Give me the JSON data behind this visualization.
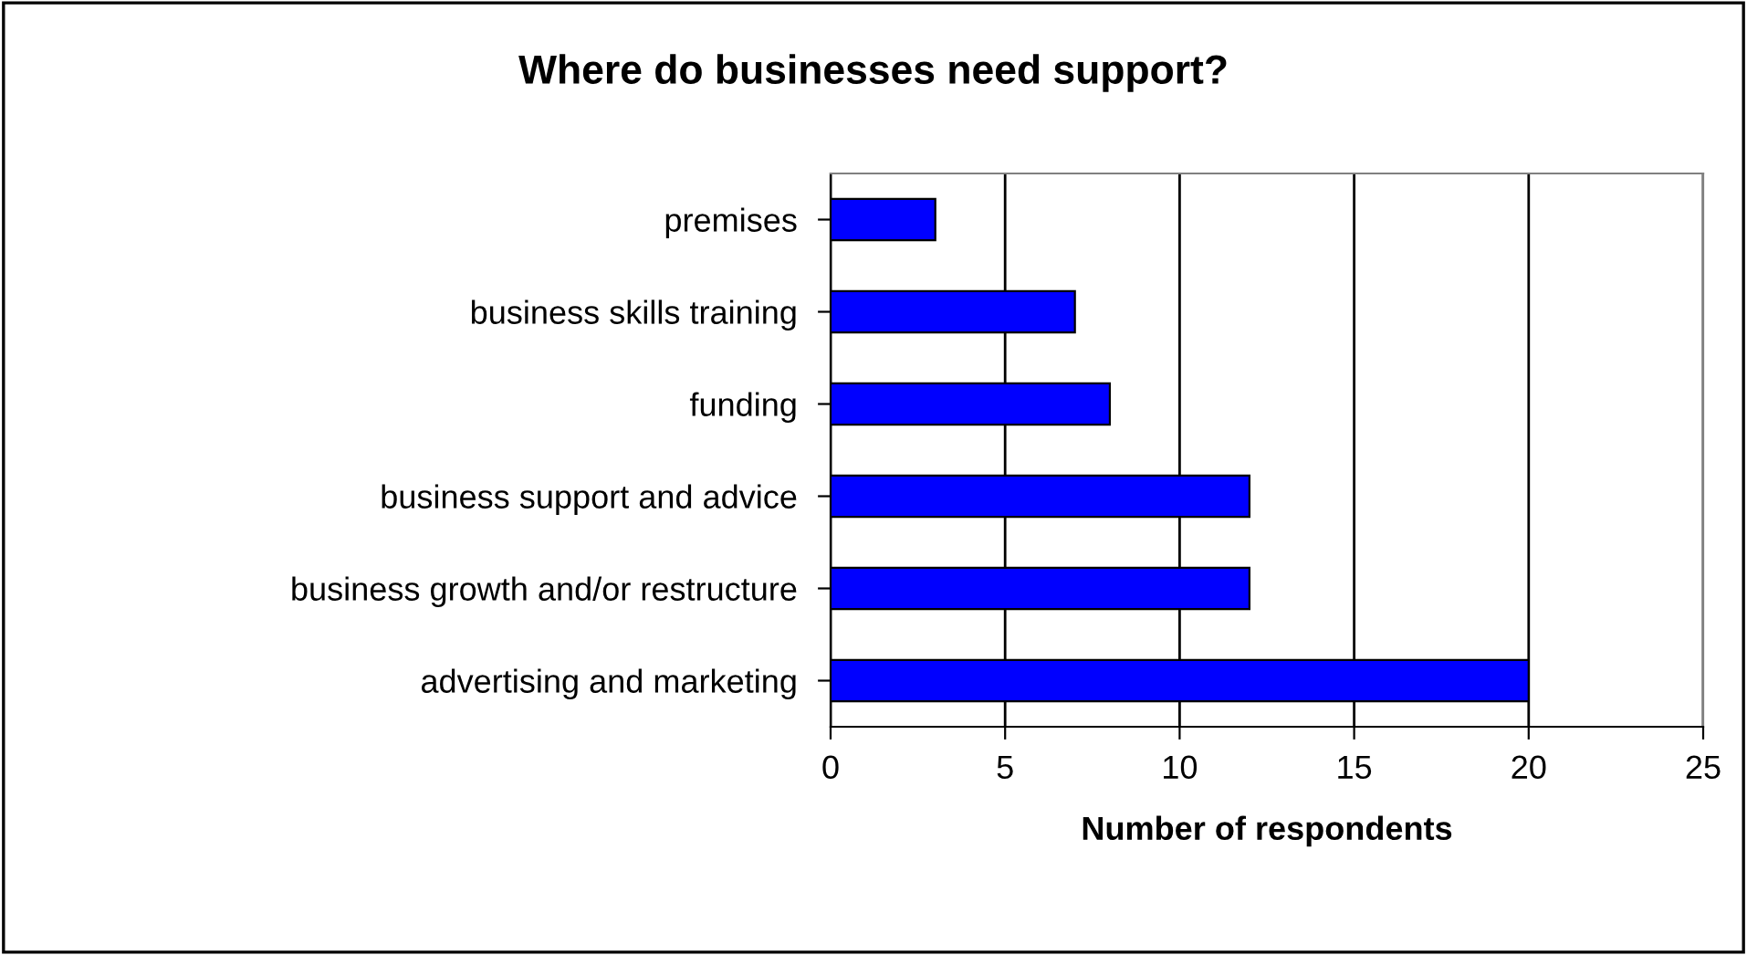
{
  "chart_data": {
    "type": "bar",
    "orientation": "horizontal",
    "title": "Where do businesses need support?",
    "xlabel": "Number of respondents",
    "categories": [
      "premises",
      "business skills training",
      "funding",
      "business support and advice",
      "business growth and/or restructure",
      "advertising and marketing"
    ],
    "values": [
      3,
      7,
      8,
      12,
      12,
      20
    ],
    "color": "#0000ff",
    "xlim": [
      0,
      25
    ],
    "xticks": [
      0,
      5,
      10,
      15,
      20,
      25
    ],
    "grid": "x"
  }
}
